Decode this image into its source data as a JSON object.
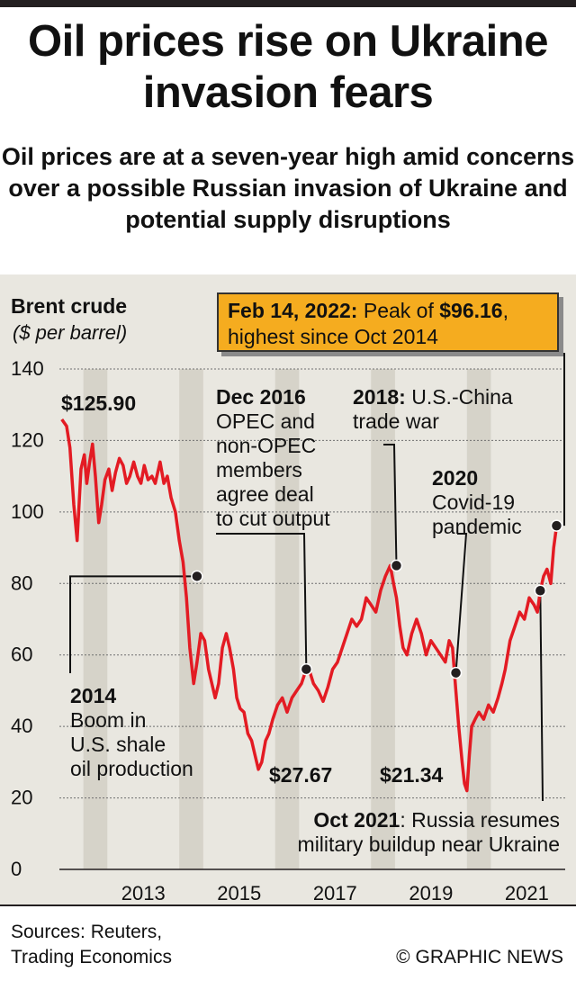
{
  "title": "Oil prices rise on Ukraine invasion fears",
  "subtitle": "Oil prices are at a seven-year high amid concerns over a possible Russian invasion of Ukraine and potential supply disruptions",
  "chart_data": {
    "type": "line",
    "ylabel": "Brent crude",
    "yunit": "($ per barrel)",
    "ylim": [
      0,
      140
    ],
    "xlim": [
      2011.75,
      2022.3
    ],
    "y_ticks": [
      "0",
      "20",
      "40",
      "60",
      "80",
      "100",
      "120",
      "140"
    ],
    "x_ticks": [
      "2013",
      "2015",
      "2017",
      "2019",
      "2021"
    ],
    "line_color": "#e31b23",
    "shade_color": "#d6d3c9",
    "series": [
      {
        "x": [
          2011.8,
          2011.9,
          2011.97,
          2012.05,
          2012.12,
          2012.2,
          2012.27,
          2012.32,
          2012.38,
          2012.44,
          2012.5,
          2012.57,
          2012.63,
          2012.7,
          2012.78,
          2012.85,
          2012.92,
          2013.0,
          2013.08,
          2013.15,
          2013.22,
          2013.3,
          2013.38,
          2013.45,
          2013.52,
          2013.6,
          2013.68,
          2013.75,
          2013.85,
          2013.93,
          2014.0,
          2014.08,
          2014.17,
          2014.25,
          2014.33,
          2014.4,
          2014.47,
          2014.55,
          2014.62,
          2014.7,
          2014.78,
          2014.86,
          2014.93,
          2015.0,
          2015.07,
          2015.15,
          2015.23,
          2015.3,
          2015.38,
          2015.45,
          2015.52,
          2015.6,
          2015.68,
          2015.76,
          2015.83,
          2015.9,
          2015.97,
          2016.05,
          2016.12,
          2016.2,
          2016.3,
          2016.4,
          2016.5,
          2016.6,
          2016.7,
          2016.8,
          2016.9,
          2016.98,
          2017.05,
          2017.15,
          2017.25,
          2017.35,
          2017.45,
          2017.55,
          2017.65,
          2017.75,
          2017.85,
          2017.95,
          2018.05,
          2018.15,
          2018.25,
          2018.35,
          2018.45,
          2018.55,
          2018.65,
          2018.72,
          2018.78,
          2018.85,
          2018.92,
          2019.0,
          2019.1,
          2019.2,
          2019.3,
          2019.4,
          2019.5,
          2019.6,
          2019.7,
          2019.8,
          2019.88,
          2019.95,
          2020.02,
          2020.08,
          2020.15,
          2020.2,
          2020.25,
          2020.3,
          2020.35,
          2020.42,
          2020.5,
          2020.6,
          2020.7,
          2020.8,
          2020.9,
          2020.98,
          2021.05,
          2021.15,
          2021.25,
          2021.35,
          2021.45,
          2021.55,
          2021.65,
          2021.72,
          2021.78,
          2021.85,
          2021.92,
          2022.0,
          2022.06,
          2022.12
        ],
        "y": [
          125.9,
          124,
          118,
          102,
          92,
          112,
          116,
          108,
          114,
          119,
          110,
          97,
          102,
          109,
          112,
          106,
          111,
          115,
          113,
          108,
          110,
          114,
          110,
          108,
          113,
          109,
          110,
          108,
          114,
          108,
          110,
          104,
          100,
          92,
          86,
          76,
          62,
          52,
          58,
          66,
          64,
          56,
          52,
          48,
          52,
          62,
          66,
          62,
          56,
          48,
          45,
          44,
          38,
          36,
          32,
          28,
          30,
          36,
          38,
          42,
          46,
          48,
          44,
          48,
          50,
          52,
          56,
          55,
          52,
          50,
          47,
          51,
          56,
          58,
          62,
          66,
          70,
          68,
          70,
          76,
          74,
          72,
          78,
          82,
          85,
          80,
          76,
          68,
          62,
          60,
          66,
          70,
          66,
          60,
          64,
          62,
          60,
          58,
          64,
          62,
          50,
          40,
          30,
          24,
          22,
          32,
          40,
          42,
          44,
          42,
          46,
          44,
          48,
          52,
          56,
          64,
          68,
          72,
          70,
          76,
          74,
          72,
          78,
          82,
          84,
          80,
          90,
          96
        ]
      }
    ],
    "shaded_bands": [
      [
        2012.25,
        2012.75
      ],
      [
        2014.25,
        2014.75
      ],
      [
        2016.25,
        2016.75
      ],
      [
        2018.25,
        2018.75
      ],
      [
        2020.25,
        2020.75
      ]
    ],
    "markers": [
      {
        "x": 2014.62,
        "y": 82
      },
      {
        "x": 2016.9,
        "y": 56
      },
      {
        "x": 2018.78,
        "y": 85
      },
      {
        "x": 2020.02,
        "y": 55
      },
      {
        "x": 2021.78,
        "y": 78
      },
      {
        "x": 2022.12,
        "y": 96.16
      }
    ],
    "value_labels": [
      "$125.90",
      "$27.67",
      "$21.34"
    ],
    "annotations": {
      "peak_date": "Feb 14, 2022:",
      "peak_text1": " Peak of ",
      "peak_value": "$96.16",
      "peak_text2": ",",
      "peak_text3": "highest since Oct 2014",
      "a2014_head": "2014",
      "a2014_l1": "Boom in",
      "a2014_l2": "U.S. shale",
      "a2014_l3": "oil production",
      "a2016_head": "Dec 2016",
      "a2016_l1": "OPEC and",
      "a2016_l2": "non-OPEC",
      "a2016_l3": "members",
      "a2016_l4": "agree deal",
      "a2016_l5": "to cut output",
      "a2018_head": "2018:",
      "a2018_l1": " U.S.-China",
      "a2018_l2": "trade war",
      "a2020_head": "2020",
      "a2020_l1": "Covid-19",
      "a2020_l2": "pandemic",
      "a2021_head": "Oct 2021",
      "a2021_l1": ": Russia resumes",
      "a2021_l2": "military buildup near Ukraine"
    }
  },
  "footer": {
    "sources_l1": "Sources: Reuters,",
    "sources_l2": "Trading Economics",
    "credit": "© GRAPHIC NEWS"
  }
}
